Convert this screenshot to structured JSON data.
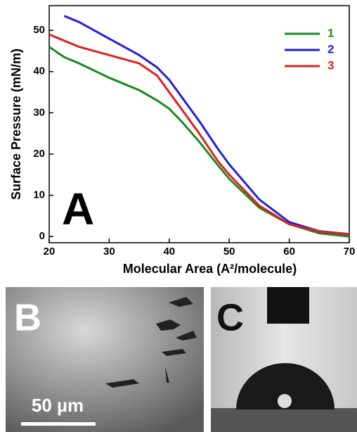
{
  "chart_data": {
    "type": "line",
    "panel_label": "A",
    "x_label": "Molecular Area (A²/molecule)",
    "y_label": "Surface Pressure (mN/m)",
    "x": [
      20,
      22.5,
      25,
      30,
      35,
      38,
      40,
      42,
      45,
      48,
      50,
      55,
      60,
      65,
      70
    ],
    "series": [
      {
        "name": "1",
        "color": "#1a8a1a",
        "values": [
          46,
          43.5,
          42,
          38.5,
          35.5,
          33,
          31,
          28,
          23,
          17.5,
          14,
          7,
          3,
          0.8,
          0
        ]
      },
      {
        "name": "2",
        "color": "#1f1fe0",
        "values": [
          null,
          53.5,
          52,
          48,
          44,
          41,
          38,
          34,
          28,
          21.5,
          17.5,
          9,
          3.5,
          1.3,
          0.6
        ]
      },
      {
        "name": "3",
        "color": "#e01f1f",
        "values": [
          49,
          47.5,
          46,
          44,
          42,
          39,
          35,
          31,
          25,
          18.5,
          15,
          7.5,
          3,
          1.2,
          0.5
        ]
      }
    ],
    "xlim": [
      20,
      70
    ],
    "xticks": [
      20,
      30,
      40,
      50,
      60,
      70
    ],
    "ylim": [
      -1.5,
      56
    ],
    "yticks": [
      0,
      10,
      20,
      30,
      40,
      50
    ],
    "legend": "upper-right"
  },
  "panel_b": {
    "label": "B",
    "scale_bar": "50 µm"
  },
  "panel_c": {
    "label": "C"
  }
}
